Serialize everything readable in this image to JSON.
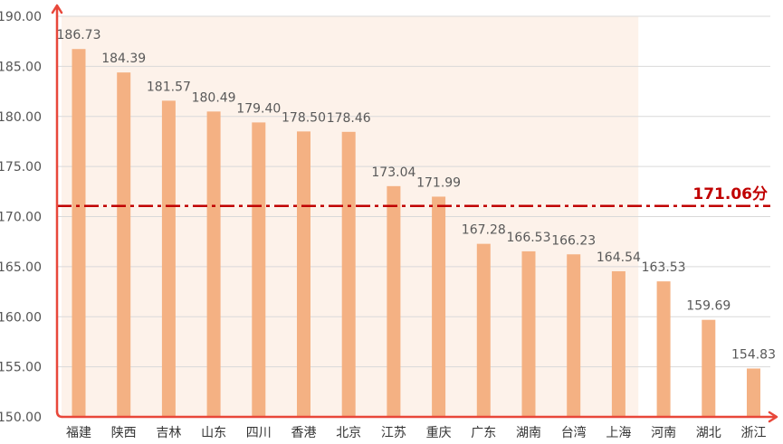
{
  "chart_data": {
    "type": "bar",
    "title": "",
    "xlabel": "",
    "ylabel": "",
    "ylim": [
      150,
      190
    ],
    "yticks": [
      "150.00",
      "155.00",
      "160.00",
      "165.00",
      "170.00",
      "175.00",
      "180.00",
      "185.00",
      "190.00"
    ],
    "categories": [
      "福建",
      "陕西",
      "吉林",
      "山东",
      "四川",
      "香港",
      "北京",
      "江苏",
      "重庆",
      "广东",
      "湖南",
      "台湾",
      "上海",
      "河南",
      "湖北",
      "浙江"
    ],
    "values": [
      186.73,
      184.39,
      181.57,
      180.49,
      179.4,
      178.5,
      178.46,
      173.04,
      171.99,
      167.28,
      166.53,
      166.23,
      164.54,
      163.53,
      159.69,
      154.83
    ],
    "value_labels": [
      "186.73",
      "184.39",
      "181.57",
      "180.49",
      "179.40",
      "178.50",
      "178.46",
      "173.04",
      "171.99",
      "167.28",
      "166.53",
      "166.23",
      "164.54",
      "163.53",
      "159.69",
      "154.83"
    ],
    "reference_line": {
      "value": 171.06,
      "label": "171.06分"
    },
    "highlight_band": {
      "from_category": "福建",
      "to_category": "上海"
    },
    "grid": true,
    "legend": "none",
    "colors": {
      "bar": "#F4B183",
      "band": "#FDF2EA",
      "axis": "#E8473A",
      "reference": "#C00000",
      "grid": "#D9D9D9"
    }
  }
}
